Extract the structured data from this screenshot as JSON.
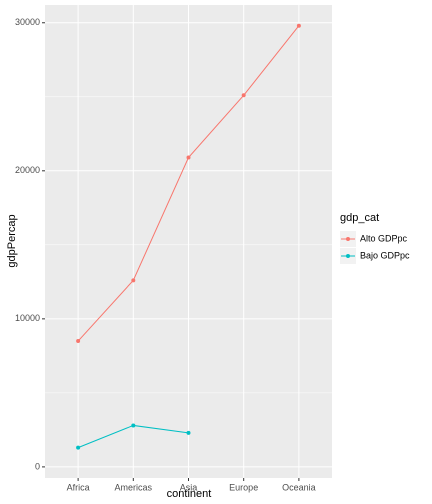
{
  "chart_data": {
    "type": "line",
    "x_label": "continent",
    "y_label": "gdpPercap",
    "categories": [
      "Africa",
      "Americas",
      "Asia",
      "Europe",
      "Oceania"
    ],
    "series": [
      {
        "name": "Alto GDPpc",
        "color": "#F8766D",
        "values": [
          8500,
          12600,
          20900,
          25100,
          29800
        ]
      },
      {
        "name": "Bajo GDPpc",
        "color": "#00BFC4",
        "values": [
          1300,
          2800,
          2300,
          null,
          null
        ]
      }
    ],
    "legend_title": "gdp_cat",
    "ylim": [
      -750,
      31200
    ],
    "yticks": [
      0,
      10000,
      20000,
      30000
    ],
    "yminor": [
      5000,
      15000,
      25000
    ],
    "grid": true,
    "legend_position": "right"
  }
}
